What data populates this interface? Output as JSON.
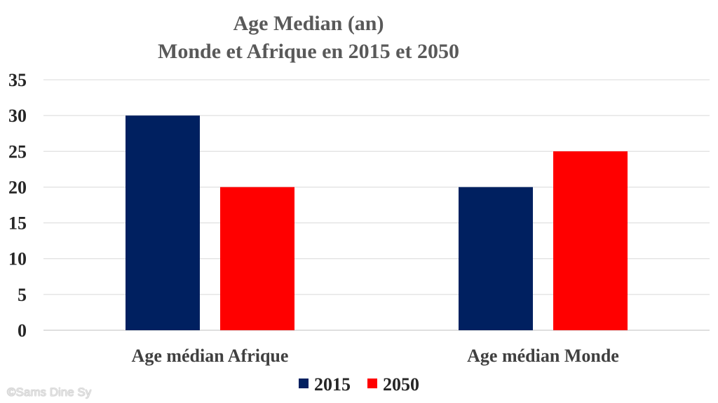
{
  "chart_data": {
    "type": "bar",
    "title": "Age Median (an)",
    "subtitle": "Monde et Afrique en 2015 et 2050",
    "categories": [
      "Age médian Afrique",
      "Age médian Monde"
    ],
    "series": [
      {
        "name": "2015",
        "values": [
          30,
          20
        ],
        "color": "#002060"
      },
      {
        "name": "2050",
        "values": [
          20,
          25
        ],
        "color": "#ff0000"
      }
    ],
    "ylim": [
      0,
      35
    ],
    "yticks": [
      "0",
      "5",
      "10",
      "15",
      "20",
      "25",
      "30",
      "35"
    ],
    "grid": true,
    "legend": "bottom"
  },
  "watermark": "©Sams Dine Sy"
}
